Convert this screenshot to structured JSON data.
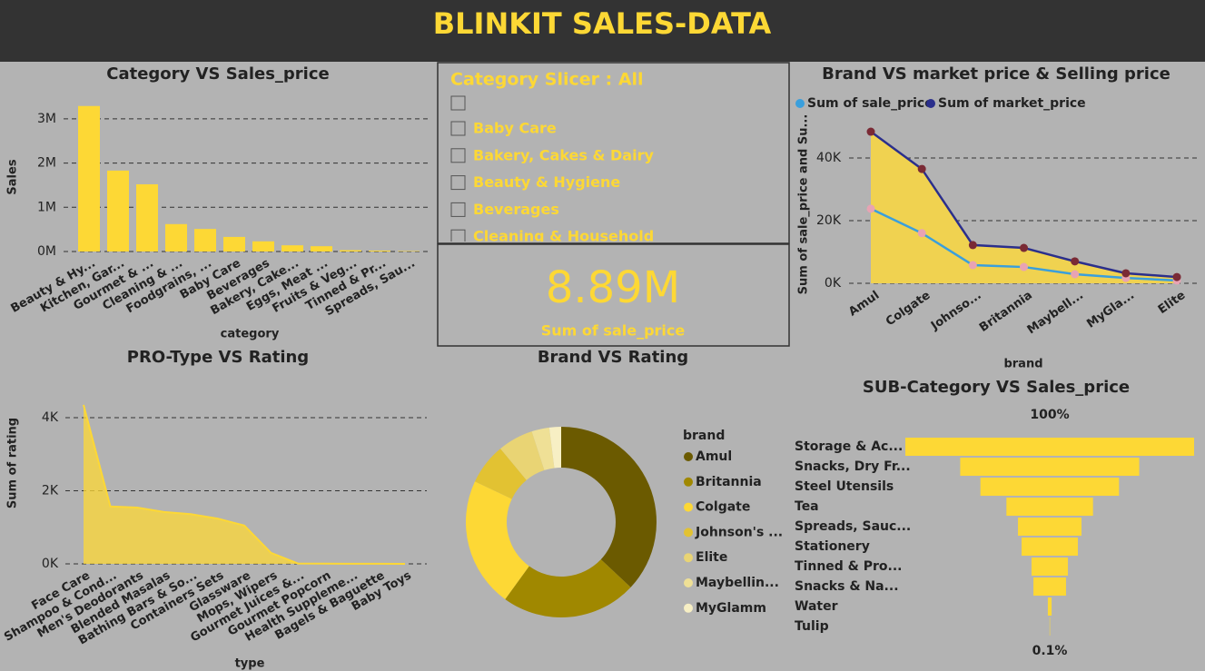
{
  "header": {
    "title": "BLINKIT SALES-DATA"
  },
  "slicer": {
    "title": "Category Slicer : All",
    "items": [
      "Baby Care",
      "Bakery, Cakes & Dairy",
      "Beauty & Hygiene",
      "Beverages",
      "Cleaning & Household"
    ]
  },
  "card": {
    "value": "8.89M",
    "label": "Sum of sale_price"
  },
  "chart_data": [
    {
      "type": "bar",
      "title": "Category VS Sales_price",
      "x_label": "category",
      "y_label": "Sales",
      "categories": [
        "Beauty & Hy...",
        "Kitchen, Gar...",
        "Gourmet & ...",
        "Cleaning & ...",
        "Foodgrains, ...",
        "Baby Care",
        "Beverages",
        "Bakery, Cake...",
        "Eggs, Meat ...",
        "Fruits & Veg...",
        "Tinned & Pr...",
        "Spreads, Sau..."
      ],
      "values": [
        3290000,
        1830000,
        1520000,
        620000,
        510000,
        330000,
        230000,
        140000,
        120000,
        30000,
        20000,
        10000
      ],
      "color": "#fdd835",
      "ylim": [
        0,
        3400000
      ],
      "yticks": [
        {
          "value": 0,
          "label": "0M"
        },
        {
          "value": 1000000,
          "label": "1M"
        },
        {
          "value": 2000000,
          "label": "2M"
        },
        {
          "value": 3000000,
          "label": "3M"
        }
      ],
      "grid": true
    },
    {
      "type": "line",
      "title": "Brand VS market price & Selling price",
      "x_label": "brand",
      "y_label": "Sum of sale_price and Su...",
      "categories": [
        "Amul",
        "Colgate",
        "Johnso...",
        "Britannia",
        "Maybell...",
        "MyGla...",
        "Elite"
      ],
      "series": [
        {
          "name": "Sum of sale_price",
          "color": "#3a9fdc",
          "marker_color": "#e8a3b3",
          "values": [
            23800,
            16000,
            5800,
            5200,
            2900,
            1700,
            900
          ]
        },
        {
          "name": "Sum of market_price",
          "color": "#2b2f8c",
          "marker_color": "#7a2a35",
          "fill_color": "#f0d250",
          "values": [
            48400,
            36500,
            12200,
            11300,
            7000,
            3200,
            2000
          ]
        }
      ],
      "ylim": [
        0,
        50000
      ],
      "yticks": [
        {
          "value": 0,
          "label": "0K"
        },
        {
          "value": 20000,
          "label": "20K"
        },
        {
          "value": 40000,
          "label": "40K"
        }
      ],
      "grid": true,
      "legend": "top"
    },
    {
      "type": "area",
      "title": "PRO-Type VS Rating",
      "x_label": "type",
      "y_label": "Sum of rating",
      "categories": [
        "Face Care",
        "Shampoo & Cond...",
        "Men's Deodorants",
        "Blended Masalas",
        "Bathing Bars & So...",
        "Containers Sets",
        "Glassware",
        "Mops, Wipers",
        "Gourmet Juices &...",
        "Gourmet Popcorn",
        "Health Suppleme...",
        "Bagels & Baguette",
        "Baby Toys"
      ],
      "values": [
        4350,
        1570,
        1540,
        1420,
        1360,
        1240,
        1050,
        300,
        10,
        5,
        3,
        2,
        1
      ],
      "color": "#fdd835",
      "ylim": [
        0,
        4500
      ],
      "yticks": [
        {
          "value": 0,
          "label": "0K"
        },
        {
          "value": 2000,
          "label": "2K"
        },
        {
          "value": 4000,
          "label": "4K"
        }
      ],
      "grid": true
    },
    {
      "type": "donut",
      "title": "Brand VS Rating",
      "legend_title": "brand",
      "categories": [
        "Amul",
        "Britannia",
        "Colgate",
        "Johnson's ...",
        "Elite",
        "Maybellin...",
        "MyGlamm"
      ],
      "values": [
        37,
        23,
        22,
        7,
        6,
        3,
        2
      ],
      "colors": [
        "#6b5a00",
        "#a08800",
        "#fdd835",
        "#e2c232",
        "#e9d474",
        "#efe096",
        "#f7efc4"
      ],
      "legend": "right"
    },
    {
      "type": "funnel",
      "title": "SUB-Category VS Sales_price",
      "categories": [
        "Storage & Ac...",
        "Snacks, Dry Fr...",
        "Steel Utensils",
        "Tea",
        "Spreads, Sauc...",
        "Stationery",
        "Tinned & Pro...",
        "Snacks & Na...",
        "Water",
        "Tulip"
      ],
      "values": [
        100,
        62,
        48,
        30,
        22,
        19.5,
        12.6,
        11.3,
        1.3,
        0.1
      ],
      "value_labels": [
        "100%",
        null,
        null,
        null,
        null,
        null,
        null,
        null,
        null,
        "0.1%"
      ],
      "color": "#fdd835"
    }
  ]
}
